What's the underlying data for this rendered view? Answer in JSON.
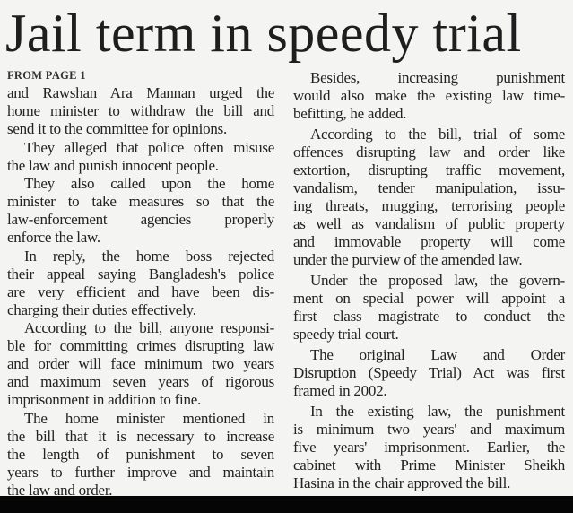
{
  "headline": "Jail term in speedy trial",
  "continuation": "FROM PAGE 1",
  "columns": [
    {
      "paragraphs": [
        {
          "indent": false,
          "lines": [
            "and Rawshan Ara Mannan urged the",
            "home minister to withdraw the bill and",
            "send it to the committee for opinions."
          ]
        },
        {
          "indent": true,
          "lines": [
            "They alleged that police often misuse",
            "the law and punish innocent people."
          ]
        },
        {
          "indent": true,
          "lines": [
            "They also called upon the home",
            "minister to take measures so that the",
            "law-enforcement agencies properly",
            "enforce the law."
          ]
        },
        {
          "indent": true,
          "lines": [
            "In reply, the home boss rejected",
            "their appeal saying Bangladesh's police",
            "are very efficient and have been dis-",
            "charging their duties effectively."
          ]
        },
        {
          "indent": true,
          "lines": [
            "According to the bill, anyone responsi-",
            "ble for committing crimes disrupting law",
            "and order will face minimum two years",
            "and maximum seven years of rigorous",
            "imprisonment in addition to fine."
          ]
        },
        {
          "indent": true,
          "lines": [
            "The home minister mentioned in",
            "the bill that it is necessary to increase",
            "the length of punishment to seven",
            "years to further improve and maintain",
            "the law and order."
          ]
        }
      ]
    },
    {
      "paragraphs": [
        {
          "indent": true,
          "lines": [
            "Besides, increasing punishment",
            "would also make the existing law time-",
            "befitting, he added."
          ]
        },
        {
          "indent": true,
          "lines": [
            "According to the bill, trial of some",
            "offences disrupting law and order like",
            "extortion, disrupting traffic movement,",
            "vandalism, tender manipulation, issu-",
            "ing threats, mugging, terrorising people",
            "as well as vandalism of public property",
            "and immovable property will come",
            "under the purview of the amended law."
          ]
        },
        {
          "indent": true,
          "lines": [
            "Under the proposed law, the govern-",
            "ment on special power will appoint a",
            "first class magistrate to conduct the",
            "speedy trial court."
          ]
        },
        {
          "indent": true,
          "lines": [
            "The original Law and Order",
            "Disruption (Speedy Trial) Act was first",
            "framed in 2002."
          ]
        },
        {
          "indent": true,
          "lines": [
            "In the existing law, the punishment",
            "is minimum two years' and maximum",
            "five years' imprisonment. Earlier, the",
            "cabinet with Prime Minister Sheikh",
            "Hasina in the chair approved the bill."
          ]
        }
      ]
    }
  ]
}
